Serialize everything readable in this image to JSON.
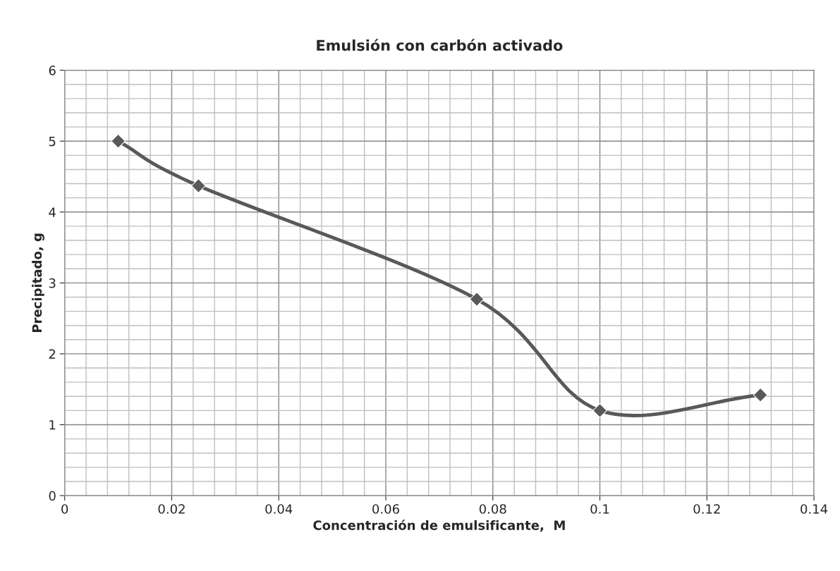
{
  "chart_data": {
    "type": "line",
    "title": "Emulsión con carbón activado",
    "xlabel": "Concentración de emulsificante,  M",
    "ylabel": "Precipitado, g",
    "x": [
      0.01,
      0.025,
      0.077,
      0.1,
      0.13
    ],
    "series": [
      {
        "color": "#595959",
        "values": [
          5.0,
          4.37,
          2.77,
          1.2,
          1.42
        ]
      }
    ],
    "xlim": [
      0,
      0.14
    ],
    "xticks": [
      0,
      0.02,
      0.04,
      0.06,
      0.08,
      0.1,
      0.12,
      0.14
    ],
    "ylim": [
      0,
      6
    ],
    "yticks": [
      0,
      1,
      2,
      3,
      4,
      5,
      6
    ],
    "grid": true,
    "marker": "diamond",
    "line_style": "solid",
    "legend": false
  }
}
